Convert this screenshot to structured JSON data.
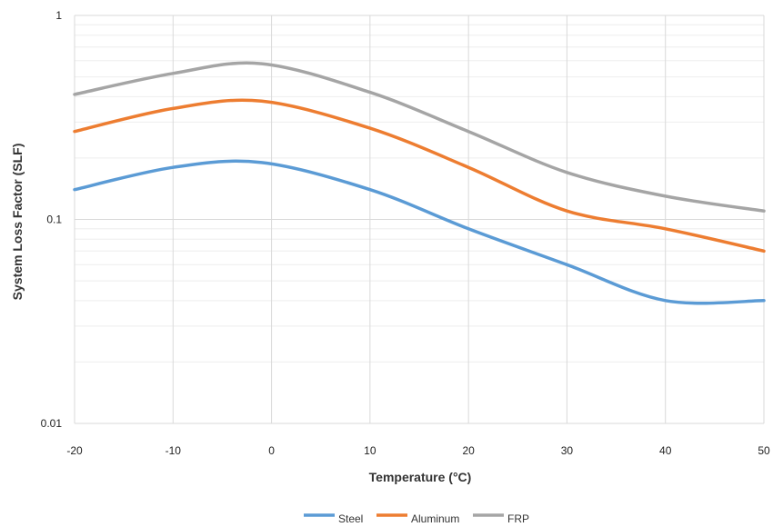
{
  "chart_data": {
    "type": "line",
    "title": "",
    "xlabel": "Temperature (°C)",
    "ylabel": "System Loss Factor (SLF)",
    "yscale": "log",
    "xlim": [
      -20,
      50
    ],
    "ylim": [
      0.01,
      1
    ],
    "x_ticks": [
      "-20",
      "-10",
      "0",
      "10",
      "20",
      "30",
      "40",
      "50"
    ],
    "y_ticks": [
      "0.01",
      "0.1",
      "1"
    ],
    "grid": true,
    "legend_position": "bottom",
    "x": [
      -20,
      -10,
      -1,
      10,
      20,
      30,
      40,
      50
    ],
    "series": [
      {
        "name": "Steel",
        "color": "#5b9bd5",
        "values": [
          0.14,
          0.18,
          0.19,
          0.14,
          0.09,
          0.06,
          0.04,
          0.04
        ]
      },
      {
        "name": "Aluminum",
        "color": "#ed7d31",
        "values": [
          0.27,
          0.35,
          0.38,
          0.28,
          0.18,
          0.11,
          0.09,
          0.07
        ]
      },
      {
        "name": "FRP",
        "color": "#a5a5a5",
        "values": [
          0.41,
          0.52,
          0.58,
          0.42,
          0.27,
          0.17,
          0.13,
          0.11
        ]
      }
    ]
  }
}
